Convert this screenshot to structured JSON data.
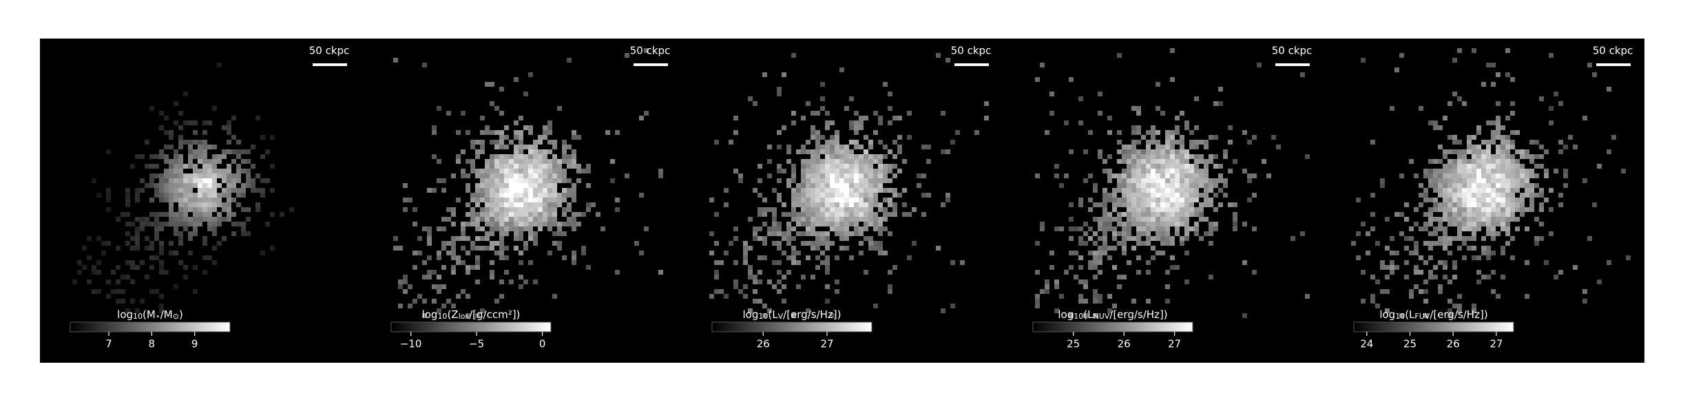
{
  "panels": [
    {
      "scale_bar": "50 ckpc",
      "colorbar": {
        "label": [
          "log",
          "10",
          "(M",
          "⋆",
          "/M",
          "⊙",
          ")"
        ],
        "lim": [
          6.1,
          9.825
        ],
        "ticks": [
          7,
          8,
          9
        ]
      }
    },
    {
      "scale_bar": "50 ckpc",
      "colorbar": {
        "label": [
          "log",
          "10",
          "(Z",
          "los",
          "/[g/ccm²])"
        ],
        "lim": [
          -11.5,
          0.65
        ],
        "ticks": [
          {
            "value": -10,
            "label": "−10"
          },
          {
            "value": -5,
            "label": "−5"
          },
          0
        ]
      }
    },
    {
      "scale_bar": "50 ckpc",
      "colorbar": {
        "label": [
          "log",
          "10",
          "(L",
          "V",
          "/[erg/s/Hz])"
        ],
        "lim": [
          25.2,
          27.7
        ],
        "ticks": [
          26,
          27
        ]
      }
    },
    {
      "scale_bar": "50 ckpc",
      "colorbar": {
        "label": [
          "log",
          "10",
          "(L",
          "NUV",
          "/[erg/s/Hz])"
        ],
        "lim": [
          24.2,
          27.36
        ],
        "ticks": [
          25,
          26,
          27
        ]
      }
    },
    {
      "scale_bar": "50 ckpc",
      "colorbar": {
        "label": [
          "log",
          "10",
          "(L",
          "FUV",
          "/[erg/s/Hz])"
        ],
        "lim": [
          23.7,
          27.4
        ],
        "ticks": [
          24,
          25,
          26,
          27
        ]
      }
    }
  ]
}
